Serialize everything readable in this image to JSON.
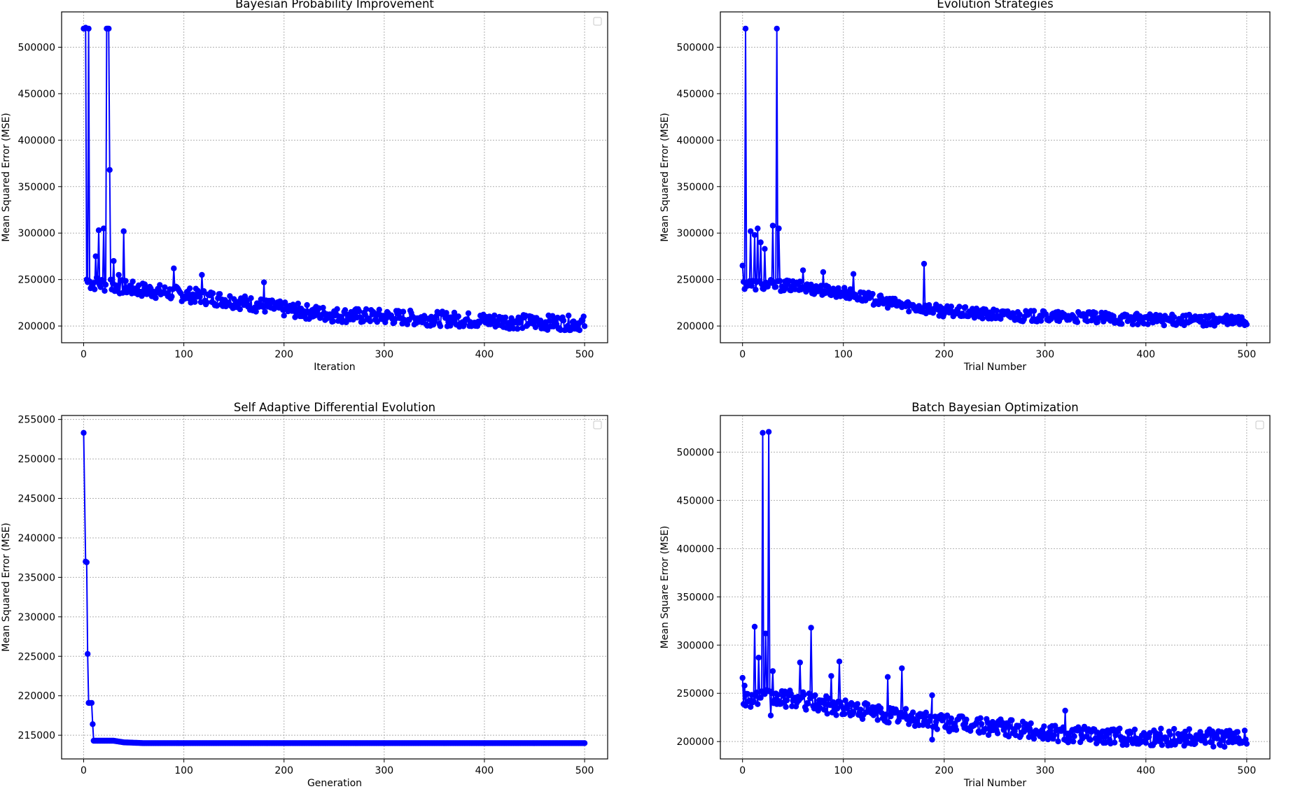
{
  "chart_data": [
    {
      "type": "line",
      "title": "Bayesian Probability Improvement",
      "xlabel": "Iteration",
      "ylabel": "Mean Squared Error (MSE)",
      "xlim": [
        -22,
        523
      ],
      "ylim": [
        182000,
        538000
      ],
      "xticks": [
        0,
        100,
        200,
        300,
        400,
        500
      ],
      "yticks": [
        200000,
        250000,
        300000,
        350000,
        400000,
        450000,
        500000
      ],
      "grid": true,
      "legend": "top-right (empty)",
      "color": "#0000ff",
      "series": [
        {
          "x_start": 0,
          "x_step": 1,
          "spikes": [
            [
              0,
              520000
            ],
            [
              1,
              520000
            ],
            [
              2,
              521000
            ],
            [
              3,
              250000
            ],
            [
              5,
              520000
            ],
            [
              12,
              275000
            ],
            [
              15,
              303000
            ],
            [
              20,
              305000
            ],
            [
              23,
              520000
            ],
            [
              24,
              520000
            ],
            [
              25,
              520000
            ],
            [
              26,
              368000
            ],
            [
              27,
              250000
            ],
            [
              30,
              270000
            ],
            [
              35,
              255000
            ],
            [
              40,
              302000
            ],
            [
              90,
              262000
            ],
            [
              118,
              255000
            ],
            [
              180,
              247000
            ]
          ],
          "trend": [
            [
              0,
              248000
            ],
            [
              50,
              240000
            ],
            [
              100,
              234000
            ],
            [
              150,
              227000
            ],
            [
              200,
              218000
            ],
            [
              250,
              212000
            ],
            [
              300,
              210000
            ],
            [
              350,
              208000
            ],
            [
              400,
              206000
            ],
            [
              450,
              204000
            ],
            [
              500,
              203000
            ]
          ],
          "noise": 8000,
          "last_x": 500
        }
      ]
    },
    {
      "type": "line",
      "title": "Evolution Strategies",
      "xlabel": "Trial Number",
      "ylabel": "Mean Squared Error (MSE)",
      "xlim": [
        -22,
        523
      ],
      "ylim": [
        182000,
        538000
      ],
      "xticks": [
        0,
        100,
        200,
        300,
        400,
        500
      ],
      "yticks": [
        200000,
        250000,
        300000,
        350000,
        400000,
        450000,
        500000
      ],
      "grid": true,
      "color": "#0000ff",
      "series": [
        {
          "x_start": 0,
          "x_step": 1,
          "spikes": [
            [
              0,
              265000
            ],
            [
              3,
              520000
            ],
            [
              8,
              302000
            ],
            [
              12,
              298000
            ],
            [
              15,
              305000
            ],
            [
              18,
              290000
            ],
            [
              22,
              283000
            ],
            [
              30,
              308000
            ],
            [
              34,
              520000
            ],
            [
              36,
              305000
            ],
            [
              60,
              260000
            ],
            [
              80,
              258000
            ],
            [
              110,
              256000
            ],
            [
              180,
              267000
            ]
          ],
          "trend": [
            [
              0,
              245000
            ],
            [
              50,
              243000
            ],
            [
              100,
              236000
            ],
            [
              150,
              224000
            ],
            [
              200,
              216000
            ],
            [
              250,
              212000
            ],
            [
              300,
              210000
            ],
            [
              350,
              209000
            ],
            [
              400,
              207000
            ],
            [
              450,
              206000
            ],
            [
              500,
              205000
            ]
          ],
          "noise": 6000,
          "last_x": 500
        }
      ]
    },
    {
      "type": "line",
      "title": "Self Adaptive Differential Evolution",
      "xlabel": "Generation",
      "ylabel": "Mean Squared Error (MSE)",
      "xlim": [
        -22,
        523
      ],
      "ylim": [
        212000,
        255500
      ],
      "xticks": [
        0,
        100,
        200,
        300,
        400,
        500
      ],
      "yticks": [
        215000,
        220000,
        225000,
        230000,
        235000,
        240000,
        245000,
        250000,
        255000
      ],
      "grid": true,
      "legend": "top-right (empty)",
      "color": "#0000ff",
      "series": [
        {
          "x_start": 0,
          "x_step": 1,
          "spikes": [
            [
              0,
              253300
            ],
            [
              2,
              237000
            ],
            [
              3,
              236900
            ],
            [
              4,
              225300
            ],
            [
              5,
              219100
            ],
            [
              6,
              219100
            ],
            [
              8,
              219100
            ],
            [
              9,
              216400
            ],
            [
              10,
              214300
            ],
            [
              35,
              214200
            ]
          ],
          "trend": [
            [
              10,
              214300
            ],
            [
              30,
              214300
            ],
            [
              40,
              214100
            ],
            [
              60,
              214000
            ],
            [
              500,
              214000
            ]
          ],
          "noise": 0,
          "last_x": 500
        }
      ]
    },
    {
      "type": "line",
      "title": "Batch Bayesian Optimization",
      "xlabel": "Trial Number",
      "ylabel": "Mean Square Error (MSE)",
      "xlim": [
        -22,
        523
      ],
      "ylim": [
        182000,
        538000
      ],
      "xticks": [
        0,
        100,
        200,
        300,
        400,
        500
      ],
      "yticks": [
        200000,
        250000,
        300000,
        350000,
        400000,
        450000,
        500000
      ],
      "grid": true,
      "legend": "top-right (empty)",
      "color": "#0000ff",
      "series": [
        {
          "x_start": 0,
          "x_step": 1,
          "spikes": [
            [
              0,
              266000
            ],
            [
              2,
              258000
            ],
            [
              12,
              319000
            ],
            [
              16,
              287000
            ],
            [
              20,
              520000
            ],
            [
              23,
              312000
            ],
            [
              26,
              521000
            ],
            [
              28,
              227000
            ],
            [
              30,
              273000
            ],
            [
              57,
              282000
            ],
            [
              68,
              318000
            ],
            [
              88,
              268000
            ],
            [
              96,
              283000
            ],
            [
              144,
              267000
            ],
            [
              158,
              276000
            ],
            [
              188,
              248000
            ],
            [
              188,
              202000
            ],
            [
              320,
              232000
            ]
          ],
          "trend": [
            [
              0,
              245000
            ],
            [
              50,
              244000
            ],
            [
              100,
              235000
            ],
            [
              150,
              227000
            ],
            [
              200,
              220000
            ],
            [
              250,
              215000
            ],
            [
              300,
              210000
            ],
            [
              350,
              206000
            ],
            [
              400,
              205000
            ],
            [
              450,
              204000
            ],
            [
              500,
              203000
            ]
          ],
          "noise": 9000,
          "last_x": 500
        }
      ]
    }
  ]
}
